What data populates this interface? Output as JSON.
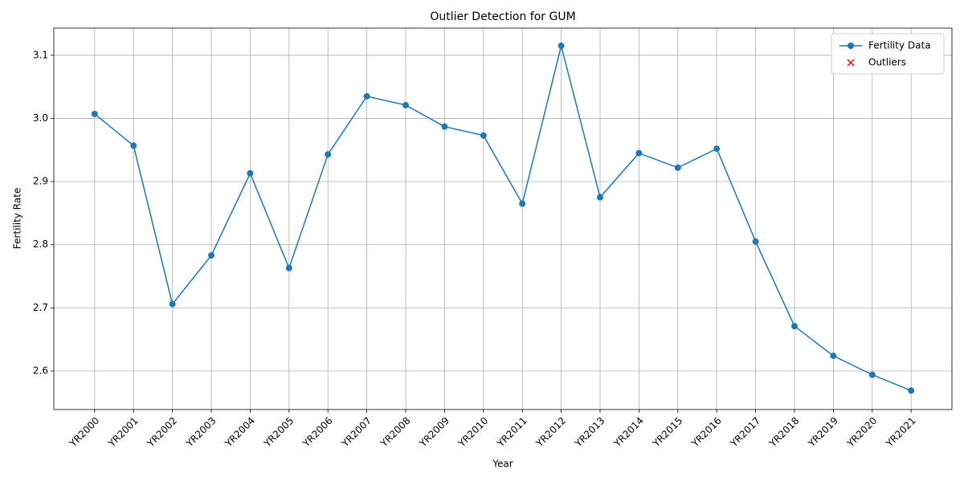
{
  "chart_data": {
    "type": "line",
    "title": "Outlier Detection for GUM",
    "x_label": "Year",
    "y_label": "Fertility Rate",
    "categories": [
      "YR2000",
      "YR2001",
      "YR2002",
      "YR2003",
      "YR2004",
      "YR2005",
      "YR2006",
      "YR2007",
      "YR2008",
      "YR2009",
      "YR2010",
      "YR2011",
      "YR2012",
      "YR2013",
      "YR2014",
      "YR2015",
      "YR2016",
      "YR2017",
      "YR2018",
      "YR2019",
      "YR2020",
      "YR2021"
    ],
    "series": [
      {
        "name": "Fertility Data",
        "color": "#1f77b4",
        "marker": "o",
        "values": [
          3.007,
          2.957,
          2.706,
          2.783,
          2.913,
          2.763,
          2.943,
          3.035,
          3.021,
          2.987,
          2.973,
          2.865,
          3.115,
          2.875,
          2.945,
          2.922,
          2.952,
          2.805,
          2.671,
          2.624,
          2.594,
          2.569
        ]
      },
      {
        "name": "Outliers",
        "color": "#ff0000",
        "marker": "x",
        "values": [
          null,
          null,
          null,
          null,
          null,
          null,
          null,
          null,
          null,
          null,
          null,
          null,
          null,
          null,
          null,
          null,
          null,
          null,
          null,
          null,
          null,
          null
        ]
      }
    ],
    "ylim": [
      2.539,
      3.143
    ],
    "yticks": [
      2.6,
      2.7,
      2.8,
      2.9,
      {
        "value": 3.0,
        "label": "3.0"
      },
      3.1
    ],
    "grid": true,
    "legend": "upper right"
  }
}
